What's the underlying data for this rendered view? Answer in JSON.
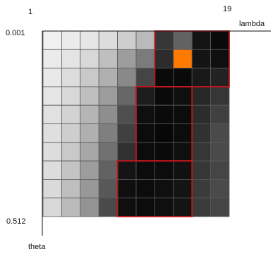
{
  "chart_data": {
    "type": "heatmap",
    "title": "",
    "x_start_label": "1",
    "x_end_label": "19",
    "x_axis_label": "lambda",
    "y_start_label": "0.001",
    "y_end_label": "0.512",
    "y_axis_label": "theta",
    "rows": 10,
    "cols": 10,
    "values": [
      [
        0.98,
        0.96,
        0.94,
        0.9,
        0.84,
        0.76,
        0.22,
        0.4,
        0.08,
        0.04
      ],
      [
        0.96,
        0.93,
        0.88,
        0.78,
        0.64,
        0.5,
        0.18,
        1.0,
        0.08,
        0.06
      ],
      [
        0.95,
        0.9,
        0.82,
        0.72,
        0.56,
        0.28,
        0.04,
        0.04,
        0.1,
        0.14
      ],
      [
        0.94,
        0.88,
        0.78,
        0.64,
        0.42,
        0.12,
        0.04,
        0.06,
        0.16,
        0.22
      ],
      [
        0.92,
        0.86,
        0.74,
        0.58,
        0.32,
        0.06,
        0.04,
        0.05,
        0.18,
        0.26
      ],
      [
        0.91,
        0.84,
        0.72,
        0.52,
        0.26,
        0.05,
        0.03,
        0.05,
        0.2,
        0.3
      ],
      [
        0.9,
        0.82,
        0.68,
        0.46,
        0.2,
        0.05,
        0.04,
        0.06,
        0.22,
        0.3
      ],
      [
        0.9,
        0.8,
        0.64,
        0.4,
        0.08,
        0.05,
        0.05,
        0.07,
        0.22,
        0.28
      ],
      [
        0.89,
        0.78,
        0.62,
        0.36,
        0.06,
        0.05,
        0.06,
        0.08,
        0.24,
        0.3
      ],
      [
        0.88,
        0.76,
        0.6,
        0.3,
        0.06,
        0.05,
        0.06,
        0.08,
        0.24,
        0.28
      ]
    ],
    "highlight_cells": [
      {
        "row": 1,
        "col": 7,
        "color": "#ff7a00"
      }
    ],
    "highlight_regions": [
      {
        "row_start": 0,
        "row_end": 2,
        "col_start": 6,
        "col_end": 9,
        "color": "#c0161f"
      },
      {
        "row_start": 3,
        "row_end": 6,
        "col_start": 5,
        "col_end": 7,
        "color": "#c0161f"
      },
      {
        "row_start": 7,
        "row_end": 9,
        "col_start": 4,
        "col_end": 7,
        "color": "#c0161f"
      }
    ],
    "grid_line_color": "#5a5a5a"
  }
}
